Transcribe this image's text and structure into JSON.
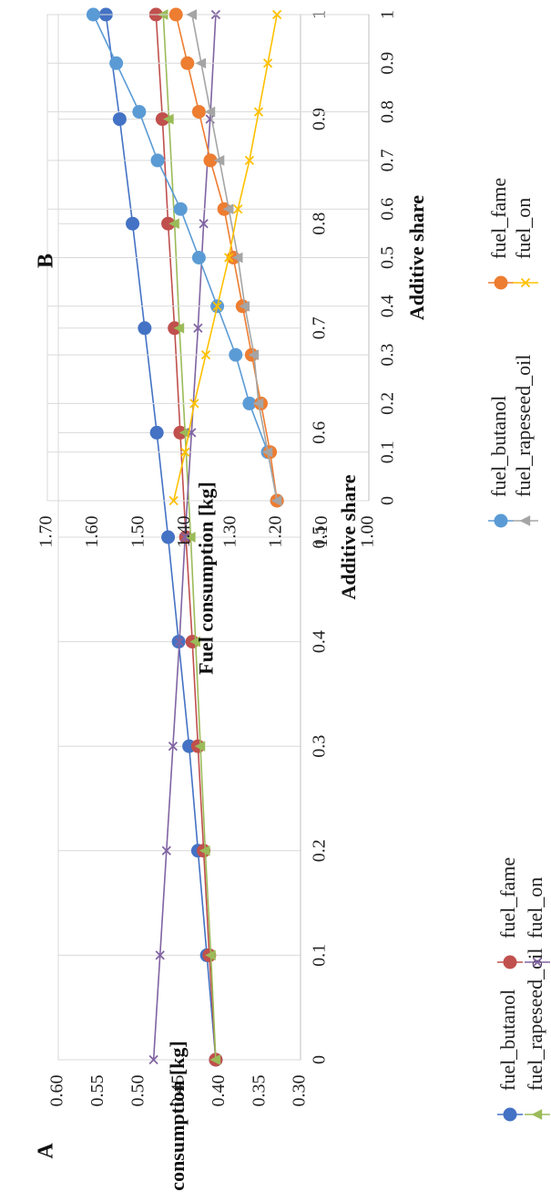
{
  "chart_data": [
    {
      "type": "line",
      "panel_label": "A",
      "xlabel": "Additive share",
      "ylabel": "Fuel consumption [kg]",
      "x": [
        0,
        0.1,
        0.2,
        0.3,
        0.4,
        0.5,
        0.6,
        0.7,
        0.8,
        0.9,
        1
      ],
      "x_tick_labels": [
        "0",
        "0.1",
        "0.2",
        "0.3",
        "0.4",
        "0.5",
        "0.6",
        "0.7",
        "0.8",
        "0.9",
        "1"
      ],
      "y_tick_values": [
        0.3,
        0.35,
        0.4,
        0.45,
        0.5,
        0.55,
        0.6
      ],
      "y_tick_labels": [
        "0.30",
        "0.35",
        "0.40",
        "0.45",
        "0.50",
        "0.55",
        "0.60"
      ],
      "ylim": [
        0.3,
        0.6
      ],
      "grid": "vertical gridlines",
      "legend_position": "bottom",
      "series": [
        {
          "name": "fuel_butanol",
          "color": "#4472c4",
          "marker": "circle",
          "values": [
            0.405,
            0.416,
            0.427,
            0.438,
            0.451,
            0.464,
            0.478,
            0.493,
            0.508,
            0.524,
            0.541
          ]
        },
        {
          "name": "fuel_fame",
          "color": "#c0504d",
          "marker": "circle",
          "values": [
            0.405,
            0.413,
            0.42,
            0.427,
            0.434,
            0.442,
            0.449,
            0.456,
            0.464,
            0.471,
            0.479
          ]
        },
        {
          "name": "fuel_rapeseed_oil",
          "color": "#9bbb59",
          "marker": "triangle",
          "values": [
            0.405,
            0.411,
            0.418,
            0.424,
            0.43,
            0.436,
            0.443,
            0.45,
            0.456,
            0.463,
            0.47
          ]
        },
        {
          "name": "fuel_on",
          "color": "#8064a2",
          "marker": "x",
          "values": [
            0.482,
            0.474,
            0.466,
            0.458,
            0.45,
            0.443,
            0.435,
            0.427,
            0.42,
            0.412,
            0.405
          ]
        }
      ]
    },
    {
      "type": "line",
      "panel_label": "B",
      "xlabel": "Additive share",
      "ylabel": "Fuel consumption [kg]",
      "x": [
        0,
        0.1,
        0.2,
        0.3,
        0.4,
        0.5,
        0.6,
        0.7,
        0.8,
        0.9,
        1
      ],
      "x_tick_labels": [
        "0",
        "0.1",
        "0.2",
        "0.3",
        "0.4",
        "0.5",
        "0.6",
        "0.7",
        "0.8",
        "0.9",
        "1"
      ],
      "y_tick_values": [
        1.0,
        1.1,
        1.2,
        1.3,
        1.4,
        1.5,
        1.6,
        1.7
      ],
      "y_tick_labels": [
        "1.00",
        "1.10",
        "1.20",
        "1.30",
        "1.40",
        "1.50",
        "1.60",
        "1.70"
      ],
      "ylim": [
        1.0,
        1.7
      ],
      "grid": "vertical gridlines",
      "legend_position": "bottom",
      "series": [
        {
          "name": "fuel_butanol",
          "color": "#5b9bd5",
          "marker": "circle",
          "values": [
            1.2,
            1.22,
            1.26,
            1.29,
            1.33,
            1.37,
            1.41,
            1.46,
            1.5,
            1.55,
            1.6
          ]
        },
        {
          "name": "fuel_fame",
          "color": "#ed7d31",
          "marker": "circle",
          "values": [
            1.2,
            1.215,
            1.235,
            1.255,
            1.275,
            1.295,
            1.315,
            1.345,
            1.37,
            1.395,
            1.42
          ]
        },
        {
          "name": "fuel_rapeseed_oil",
          "color": "#a5a5a5",
          "marker": "triangle",
          "values": [
            1.2,
            1.22,
            1.24,
            1.25,
            1.27,
            1.285,
            1.305,
            1.325,
            1.345,
            1.365,
            1.385
          ]
        },
        {
          "name": "fuel_on",
          "color": "#ffc000",
          "marker": "x",
          "values": [
            1.425,
            1.4,
            1.38,
            1.355,
            1.33,
            1.305,
            1.285,
            1.26,
            1.24,
            1.22,
            1.2
          ]
        }
      ]
    }
  ]
}
